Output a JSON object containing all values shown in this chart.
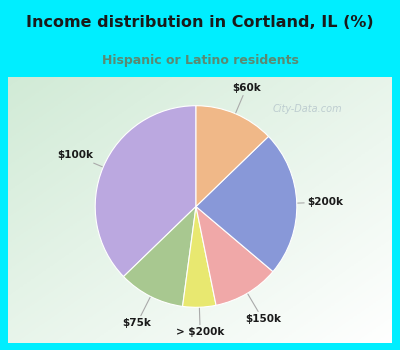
{
  "title": "Income distribution in Cortland, IL (%)",
  "subtitle": "Hispanic or Latino residents",
  "title_color": "#1a1a1a",
  "subtitle_color": "#5a8a72",
  "background_outer": "#00eeff",
  "chart_bg_color": "#e0efe8",
  "labels": [
    "$100k",
    "$75k",
    "> $200k",
    "$150k",
    "$200k",
    "$60k"
  ],
  "values": [
    35,
    10,
    5,
    10,
    22,
    12
  ],
  "colors": [
    "#bba8e0",
    "#a8c890",
    "#e8e870",
    "#f0a8a8",
    "#8898d8",
    "#f0b888"
  ],
  "start_angle": 90,
  "watermark": "City-Data.com",
  "label_color": "#1a1a1a",
  "line_color": "#aaaaaa"
}
